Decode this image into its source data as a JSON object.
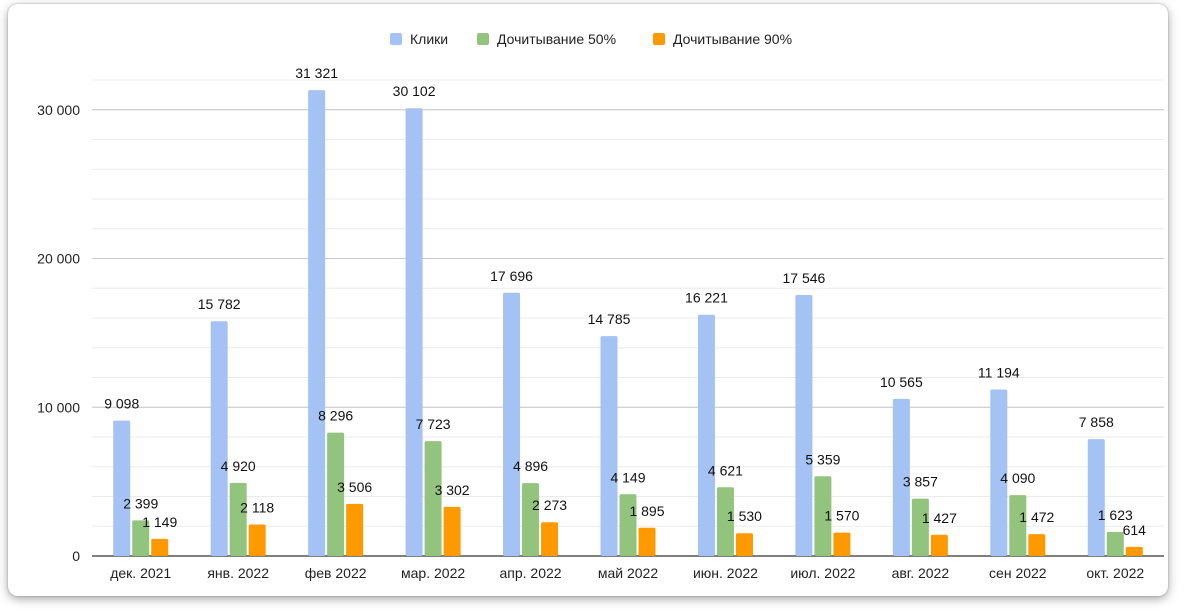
{
  "chart_data": {
    "type": "bar",
    "categories": [
      "дек. 2021",
      "янв. 2022",
      "фев 2022",
      "мар. 2022",
      "апр. 2022",
      "май 2022",
      "июн. 2022",
      "июл. 2022",
      "авг. 2022",
      "сен 2022",
      "окт. 2022"
    ],
    "series": [
      {
        "name": "Клики",
        "color": "#a4c2f4",
        "values": [
          9098,
          15782,
          31321,
          30102,
          17696,
          14785,
          16221,
          17546,
          10565,
          11194,
          7858
        ],
        "labels": [
          "9 098",
          "15 782",
          "31 321",
          "30 102",
          "17 696",
          "14 785",
          "16 221",
          "17 546",
          "10 565",
          "11 194",
          "7 858"
        ]
      },
      {
        "name": "Дочитывание 50%",
        "color": "#93c47d",
        "values": [
          2399,
          4920,
          8296,
          7723,
          4896,
          4149,
          4621,
          5359,
          3857,
          4090,
          1623
        ],
        "labels": [
          "2 399",
          "4 920",
          "8 296",
          "7 723",
          "4 896",
          "4 149",
          "4 621",
          "5 359",
          "3 857",
          "4 090",
          "1 623"
        ]
      },
      {
        "name": "Дочитывание 90%",
        "color": "#ff9900",
        "values": [
          1149,
          2118,
          3506,
          3302,
          2273,
          1895,
          1530,
          1570,
          1427,
          1472,
          614
        ],
        "labels": [
          "1 149",
          "2 118",
          "3 506",
          "3 302",
          "2 273",
          "1 895",
          "1 530",
          "1 570",
          "1 427",
          "1 472",
          "614"
        ]
      }
    ],
    "yticks": [
      0,
      10000,
      20000,
      30000
    ],
    "ytick_labels": [
      "0",
      "10 000",
      "20 000",
      "30 000"
    ],
    "ylim": [
      0,
      32000
    ],
    "grid": true,
    "legend_position": "top-center"
  }
}
